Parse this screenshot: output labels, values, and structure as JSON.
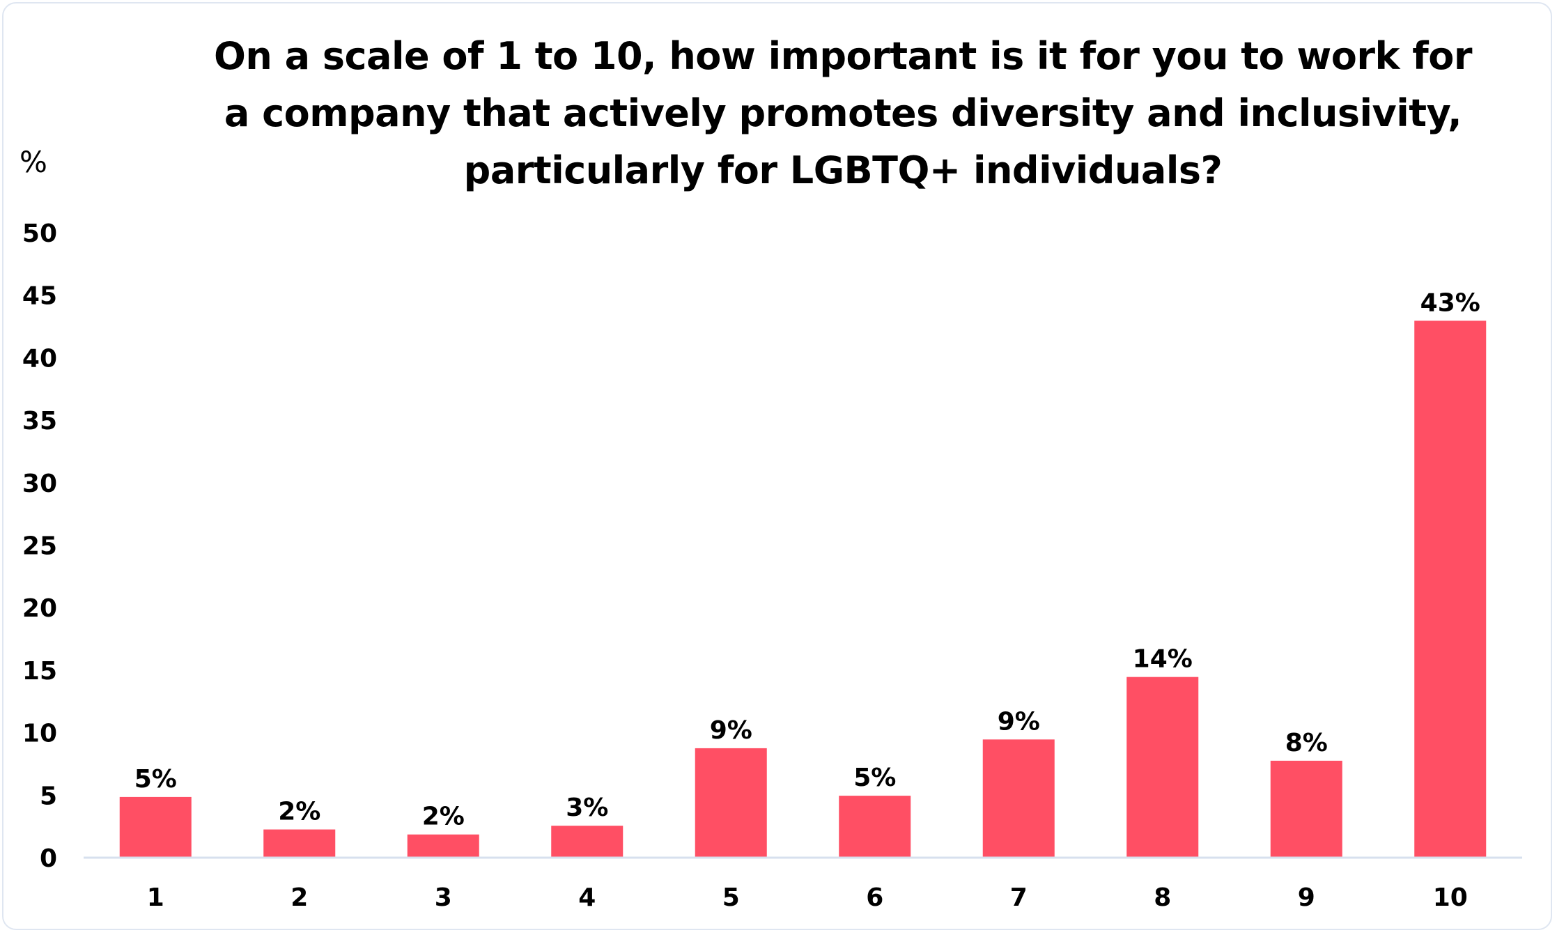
{
  "chart_data": {
    "type": "bar",
    "title": "On a scale of 1 to 10, how important is it for you to work for a company that actively promotes diversity and inclusivity, particularly for LGBTQ+ individuals?",
    "title_lines": [
      "On a scale of 1 to 10, how important is it for you to work for",
      "a company that actively promotes diversity and inclusivity,",
      "particularly for LGBTQ+ individuals?"
    ],
    "ylabel": "%",
    "xlabel": "",
    "categories": [
      "1",
      "2",
      "3",
      "4",
      "5",
      "6",
      "7",
      "8",
      "9",
      "10"
    ],
    "values": [
      4.8,
      2.2,
      1.8,
      2.5,
      8.7,
      4.9,
      9.4,
      14.4,
      7.7,
      42.9
    ],
    "data_labels": [
      "5%",
      "2%",
      "2%",
      "3%",
      "9%",
      "5%",
      "9%",
      "14%",
      "8%",
      "43%"
    ],
    "ylim": [
      0,
      50
    ],
    "yticks": [
      0,
      5,
      10,
      15,
      20,
      25,
      30,
      35,
      40,
      45,
      50
    ],
    "grid": false,
    "legend": "none",
    "bar_color": "#ff4f64",
    "axis_color": "#d7e0ee"
  }
}
